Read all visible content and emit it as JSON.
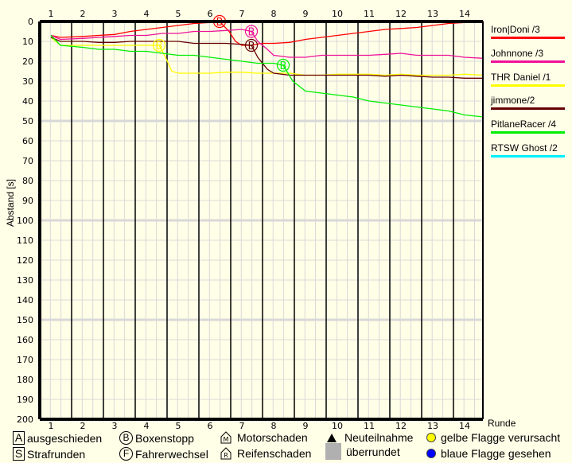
{
  "chart_data": {
    "type": "line",
    "title": "",
    "xlabel": "Runde",
    "ylabel": "Abstand [s]",
    "x_ticks": [
      1,
      2,
      3,
      4,
      5,
      6,
      7,
      8,
      9,
      10,
      11,
      12,
      13,
      14
    ],
    "y_ticks": [
      0,
      10,
      20,
      30,
      40,
      50,
      60,
      70,
      80,
      90,
      100,
      110,
      120,
      130,
      140,
      150,
      160,
      170,
      180,
      190,
      200
    ],
    "ylim": [
      0,
      200
    ],
    "y_inverted": true,
    "xlim": [
      0.65,
      14.65
    ],
    "grid": true,
    "legend_position": "right",
    "series": [
      {
        "name": "Iron|Doni /3",
        "color": "#ff0000",
        "points": [
          [
            1,
            7
          ],
          [
            1.3,
            8
          ],
          [
            2,
            7.5
          ],
          [
            2.5,
            7
          ],
          [
            3,
            6.5
          ],
          [
            3.5,
            5
          ],
          [
            4,
            4
          ],
          [
            4.5,
            3
          ],
          [
            5,
            2
          ],
          [
            5.5,
            1
          ],
          [
            6,
            0.5
          ],
          [
            6.3,
            0
          ],
          [
            6.6,
            5
          ],
          [
            6.8,
            10
          ],
          [
            7,
            12
          ],
          [
            7.3,
            12
          ],
          [
            7.6,
            11
          ],
          [
            8,
            11
          ],
          [
            8.5,
            10.5
          ],
          [
            9,
            9
          ],
          [
            9.5,
            8
          ],
          [
            10,
            7
          ],
          [
            10.5,
            6
          ],
          [
            11,
            5
          ],
          [
            11.5,
            4
          ],
          [
            12,
            3.5
          ],
          [
            12.5,
            3
          ],
          [
            13,
            2
          ],
          [
            13.5,
            1
          ],
          [
            14,
            0.5
          ],
          [
            14.6,
            0
          ]
        ],
        "events": [
          {
            "lap": 6.3,
            "type": "B"
          }
        ]
      },
      {
        "name": "Johnnone /3",
        "color": "#ee1199",
        "points": [
          [
            1,
            7
          ],
          [
            1.3,
            9
          ],
          [
            2,
            8.5
          ],
          [
            2.5,
            8
          ],
          [
            3,
            7.5
          ],
          [
            3.5,
            7
          ],
          [
            4,
            7
          ],
          [
            4.5,
            6
          ],
          [
            5,
            6
          ],
          [
            5.5,
            5
          ],
          [
            6,
            5
          ],
          [
            6.5,
            4.5
          ],
          [
            7,
            4
          ],
          [
            7.3,
            5
          ],
          [
            7.5,
            10
          ],
          [
            7.8,
            14
          ],
          [
            8,
            17
          ],
          [
            8.5,
            18
          ],
          [
            9,
            18
          ],
          [
            9.5,
            17
          ],
          [
            10,
            17
          ],
          [
            10.5,
            17
          ],
          [
            11,
            17
          ],
          [
            11.5,
            16.5
          ],
          [
            12,
            16
          ],
          [
            12.5,
            17
          ],
          [
            13,
            17
          ],
          [
            13.5,
            17
          ],
          [
            14,
            18
          ],
          [
            14.6,
            18.5
          ]
        ],
        "events": [
          {
            "lap": 7.3,
            "type": "B"
          }
        ]
      },
      {
        "name": "THR Daniel /1",
        "color": "#ffff00",
        "points": [
          [
            1,
            8
          ],
          [
            1.3,
            12
          ],
          [
            2,
            12
          ],
          [
            2.5,
            12
          ],
          [
            3,
            12
          ],
          [
            3.5,
            12
          ],
          [
            4,
            12
          ],
          [
            4.4,
            12
          ],
          [
            4.6,
            18
          ],
          [
            4.8,
            25
          ],
          [
            5,
            26
          ],
          [
            5.5,
            26
          ],
          [
            6,
            26
          ],
          [
            6.5,
            25.5
          ],
          [
            7,
            25.5
          ],
          [
            7.5,
            26
          ],
          [
            8,
            26
          ],
          [
            8.5,
            26
          ],
          [
            9,
            27
          ],
          [
            9.5,
            27
          ],
          [
            10,
            26.5
          ],
          [
            10.5,
            26.5
          ],
          [
            11,
            26.5
          ],
          [
            11.5,
            27
          ],
          [
            12,
            26.5
          ],
          [
            12.5,
            27
          ],
          [
            13,
            27
          ],
          [
            13.5,
            27
          ],
          [
            14,
            26.5
          ],
          [
            14.6,
            27
          ]
        ],
        "events": [
          {
            "lap": 4.4,
            "type": "B"
          }
        ]
      },
      {
        "name": "jimmone/2",
        "color": "#660000",
        "points": [
          [
            1,
            8
          ],
          [
            1.3,
            10
          ],
          [
            2,
            10
          ],
          [
            2.5,
            10.5
          ],
          [
            3,
            10.5
          ],
          [
            3.5,
            10
          ],
          [
            4,
            10
          ],
          [
            4.5,
            10
          ],
          [
            5,
            10
          ],
          [
            5.5,
            11
          ],
          [
            6,
            11
          ],
          [
            6.5,
            11
          ],
          [
            7,
            11.5
          ],
          [
            7.3,
            12
          ],
          [
            7.5,
            18
          ],
          [
            7.8,
            24
          ],
          [
            8,
            26
          ],
          [
            8.5,
            27
          ],
          [
            9,
            27
          ],
          [
            9.5,
            27
          ],
          [
            10,
            27
          ],
          [
            10.5,
            27
          ],
          [
            11,
            27
          ],
          [
            11.5,
            27.5
          ],
          [
            12,
            27
          ],
          [
            12.5,
            27.5
          ],
          [
            13,
            28
          ],
          [
            13.5,
            28
          ],
          [
            14,
            28.5
          ],
          [
            14.6,
            28.5
          ]
        ],
        "events": [
          {
            "lap": 7.3,
            "type": "B"
          }
        ]
      },
      {
        "name": "PitlaneRacer /4",
        "color": "#00ee00",
        "points": [
          [
            1,
            7
          ],
          [
            1.3,
            12
          ],
          [
            2,
            13
          ],
          [
            2.5,
            14
          ],
          [
            3,
            14
          ],
          [
            3.5,
            15
          ],
          [
            4,
            15
          ],
          [
            4.5,
            16
          ],
          [
            5,
            17
          ],
          [
            5.5,
            17
          ],
          [
            6,
            18
          ],
          [
            6.5,
            19
          ],
          [
            7,
            20
          ],
          [
            7.5,
            21
          ],
          [
            8,
            21
          ],
          [
            8.3,
            22
          ],
          [
            8.6,
            30
          ],
          [
            9,
            35
          ],
          [
            9.5,
            36
          ],
          [
            10,
            37
          ],
          [
            10.5,
            38
          ],
          [
            11,
            40
          ],
          [
            11.5,
            41
          ],
          [
            12,
            42
          ],
          [
            12.5,
            43
          ],
          [
            13,
            44
          ],
          [
            13.5,
            45
          ],
          [
            14,
            47
          ],
          [
            14.6,
            48
          ]
        ],
        "events": [
          {
            "lap": 8.3,
            "type": "B"
          }
        ]
      },
      {
        "name": "RTSW Ghost /2",
        "color": "#00eeff",
        "points": [],
        "events": []
      }
    ]
  },
  "legend": [
    {
      "label": "Iron|Doni /3",
      "color": "#ff0000"
    },
    {
      "label": "Johnnone /3",
      "color": "#ee1199"
    },
    {
      "label": "THR Daniel /1",
      "color": "#ffff00"
    },
    {
      "label": "jimmone/2",
      "color": "#660000"
    },
    {
      "label": "PitlaneRacer /4",
      "color": "#00ee00"
    },
    {
      "label": "RTSW Ghost /2",
      "color": "#00eeff"
    }
  ],
  "axis": {
    "xlabel": "Runde",
    "ylabel": "Abstand [s]"
  },
  "key": {
    "a_symbol": "A",
    "a_label": "ausgeschieden",
    "s_symbol": "S",
    "s_label": "Strafrunden",
    "b_symbol": "B",
    "b_label": "Boxenstopp",
    "f_symbol": "F",
    "f_label": "Fahrerwechsel",
    "m_label": "Motorschaden",
    "r_label": "Reifenschaden",
    "new_label": "Neuteilnahme",
    "lapped_label": "überrundet",
    "yellow_label": "gelbe Flagge verursacht",
    "blue_label": "blaue Flagge gesehen",
    "yellow_color": "#ffff00",
    "blue_color": "#0000ff"
  }
}
